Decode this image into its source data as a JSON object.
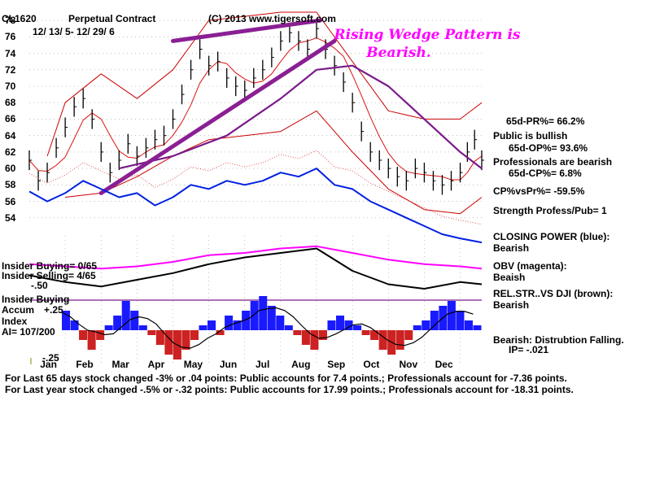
{
  "header": {
    "symbol": "CL1620",
    "contract": "Perpetual Contract",
    "copyright": "(C) 2013 www.tigersoft.com",
    "date_range": "12/ 13/ 5- 12/ 29/ 6"
  },
  "annotation": {
    "line1": "Rising Wedge Pattern is",
    "line2": "Bearish."
  },
  "indicators": [
    {
      "text": "65d-PR%= 66.2%"
    },
    {
      "text": "Public is bullish"
    },
    {
      "text": "65d-OP%= 93.6%"
    },
    {
      "text": "Professionals are bearish"
    },
    {
      "text": "65d-CP%= 6.8%"
    },
    {
      "text": "CP%vsPr%= -59.5%"
    },
    {
      "text": "Strength Profess/Pub= 1"
    },
    {
      "text": "CLOSING POWER (blue):"
    },
    {
      "text": "Bearish"
    },
    {
      "text": "OBV (magenta):"
    },
    {
      "text": "Beaish"
    },
    {
      "text": "REL.STR..VS DJI (brown):"
    },
    {
      "text": "Bearish"
    },
    {
      "text": "Bearish:  Distrubtion Falling."
    },
    {
      "text": "IP= -.021"
    }
  ],
  "insider": {
    "buying": "Insider Buying= 0/65",
    "selling": "Insider Selling= 4/65",
    "minus50": "-.50",
    "buying2": "Insider Buying",
    "accum": "Accum",
    "plus25": "+.25",
    "index": "Index",
    "ai": "AI= 107/200",
    "minus25": "-.25"
  },
  "footer": {
    "line1": "For Last 65 days stock changed -3% or  .04 points:  Public accounts for  7.4 points.;  Professionals account for -7.36 points.",
    "line2": "For Last year stock changed -.5% or -.32 points:  Public accounts for  17.99 points.;  Professionals account for -18.31 points."
  },
  "chart_data": {
    "type": "line",
    "title": "CL1620 Perpetual Contract",
    "price_axis": {
      "ylim": [
        52,
        79
      ],
      "ticks": [
        "78",
        "76",
        "74",
        "72",
        "70",
        "68",
        "66",
        "64",
        "62",
        "60",
        "58",
        "56",
        "54"
      ]
    },
    "months": [
      "Jan",
      "Feb",
      "Mar",
      "Apr",
      "May",
      "Jun",
      "Jul",
      "Aug",
      "Sep",
      "Oct",
      "Nov",
      "Dec"
    ],
    "x_range": [
      0,
      12.6
    ],
    "price_close": [
      [
        0.0,
        61.0
      ],
      [
        0.25,
        58.5
      ],
      [
        0.5,
        59.5
      ],
      [
        0.75,
        62.5
      ],
      [
        1.0,
        65.0
      ],
      [
        1.25,
        67.5
      ],
      [
        1.5,
        68.5
      ],
      [
        1.75,
        66.0
      ],
      [
        2.0,
        62.0
      ],
      [
        2.25,
        59.5
      ],
      [
        2.5,
        61.0
      ],
      [
        2.75,
        63.0
      ],
      [
        3.0,
        61.5
      ],
      [
        3.25,
        62.5
      ],
      [
        3.5,
        63.5
      ],
      [
        3.75,
        64.0
      ],
      [
        4.0,
        66.0
      ],
      [
        4.25,
        69.0
      ],
      [
        4.5,
        72.0
      ],
      [
        4.75,
        74.5
      ],
      [
        5.0,
        72.5
      ],
      [
        5.25,
        73.0
      ],
      [
        5.5,
        71.0
      ],
      [
        5.75,
        70.0
      ],
      [
        6.0,
        69.5
      ],
      [
        6.25,
        71.0
      ],
      [
        6.5,
        72.0
      ],
      [
        6.75,
        73.5
      ],
      [
        7.0,
        75.5
      ],
      [
        7.25,
        76.5
      ],
      [
        7.5,
        75.5
      ],
      [
        7.75,
        74.5
      ],
      [
        8.0,
        77.0
      ],
      [
        8.25,
        74.5
      ],
      [
        8.5,
        72.5
      ],
      [
        8.75,
        70.5
      ],
      [
        9.0,
        68.0
      ],
      [
        9.25,
        64.5
      ],
      [
        9.5,
        62.0
      ],
      [
        9.75,
        61.0
      ],
      [
        10.0,
        60.0
      ],
      [
        10.25,
        59.0
      ],
      [
        10.5,
        58.5
      ],
      [
        10.75,
        60.0
      ],
      [
        11.0,
        59.5
      ],
      [
        11.25,
        58.5
      ],
      [
        11.5,
        58.0
      ],
      [
        11.75,
        58.5
      ],
      [
        12.0,
        59.5
      ],
      [
        12.2,
        62.0
      ],
      [
        12.4,
        63.5
      ],
      [
        12.6,
        61.0
      ]
    ],
    "wedge_upper": [
      [
        4.0,
        75.5
      ],
      [
        8.1,
        78.0
      ]
    ],
    "wedge_lower": [
      [
        2.0,
        57.0
      ],
      [
        8.5,
        75.5
      ]
    ],
    "ma_purple": [
      [
        2.5,
        60.0
      ],
      [
        4.0,
        61.5
      ],
      [
        5.5,
        64.0
      ],
      [
        7.0,
        68.5
      ],
      [
        8.0,
        72.0
      ],
      [
        9.0,
        72.5
      ],
      [
        10.0,
        70.0
      ],
      [
        11.0,
        66.0
      ],
      [
        12.0,
        62.0
      ],
      [
        12.6,
        60.0
      ]
    ],
    "band_upper": [
      [
        0.5,
        61.5
      ],
      [
        1.0,
        68.0
      ],
      [
        2.0,
        71.5
      ],
      [
        3.0,
        68.5
      ],
      [
        4.0,
        72.0
      ],
      [
        5.0,
        78.0
      ],
      [
        6.0,
        78.5
      ],
      [
        7.0,
        79.0
      ],
      [
        8.0,
        79.0
      ],
      [
        9.0,
        73.0
      ],
      [
        10.0,
        67.0
      ],
      [
        11.0,
        66.0
      ],
      [
        12.0,
        66.0
      ],
      [
        12.6,
        68.0
      ]
    ],
    "band_lower": [
      [
        1.0,
        56.5
      ],
      [
        2.0,
        57.0
      ],
      [
        3.0,
        59.0
      ],
      [
        4.0,
        61.5
      ],
      [
        5.0,
        63.5
      ],
      [
        6.0,
        64.0
      ],
      [
        7.0,
        64.5
      ],
      [
        8.0,
        67.0
      ],
      [
        9.0,
        62.0
      ],
      [
        10.0,
        57.5
      ],
      [
        11.0,
        55.0
      ],
      [
        12.0,
        54.5
      ],
      [
        12.6,
        56.5
      ]
    ],
    "series_notes": [
      "price bars (black)",
      "closing power (blue)",
      "OBV (magenta)",
      "rel.str vs DJI (black)",
      "accumulation index histogram (blue/red)"
    ],
    "closing_power": [
      [
        0,
        57.2
      ],
      [
        0.5,
        56.0
      ],
      [
        1.0,
        57.0
      ],
      [
        1.5,
        58.5
      ],
      [
        2.0,
        57.5
      ],
      [
        2.5,
        56.5
      ],
      [
        3.0,
        57.0
      ],
      [
        3.5,
        55.5
      ],
      [
        4.0,
        56.5
      ],
      [
        4.5,
        58.0
      ],
      [
        5.0,
        57.5
      ],
      [
        5.5,
        58.5
      ],
      [
        6.0,
        58.0
      ],
      [
        6.5,
        58.5
      ],
      [
        7.0,
        59.5
      ],
      [
        7.5,
        59.0
      ],
      [
        8.0,
        60.0
      ],
      [
        8.5,
        58.0
      ],
      [
        9.0,
        57.5
      ],
      [
        9.5,
        56.0
      ],
      [
        10.0,
        55.0
      ],
      [
        10.5,
        54.0
      ],
      [
        11.0,
        53.0
      ],
      [
        11.5,
        52.0
      ],
      [
        12.0,
        51.5
      ],
      [
        12.6,
        51.0
      ]
    ],
    "accum_index": [
      0.2,
      0.1,
      -0.1,
      -0.2,
      -0.1,
      0.05,
      0.15,
      0.3,
      0.2,
      0.05,
      -0.05,
      -0.15,
      -0.25,
      -0.3,
      -0.2,
      -0.1,
      0.05,
      0.1,
      -0.05,
      0.15,
      0.1,
      0.2,
      0.3,
      0.35,
      0.25,
      0.15,
      0.05,
      -0.05,
      -0.15,
      -0.2,
      -0.1,
      0.1,
      0.15,
      0.1,
      0.05,
      -0.05,
      -0.1,
      -0.2,
      -0.25,
      -0.2,
      -0.1,
      0.05,
      0.1,
      0.2,
      0.25,
      0.3,
      0.2,
      0.1,
      0.05
    ]
  }
}
